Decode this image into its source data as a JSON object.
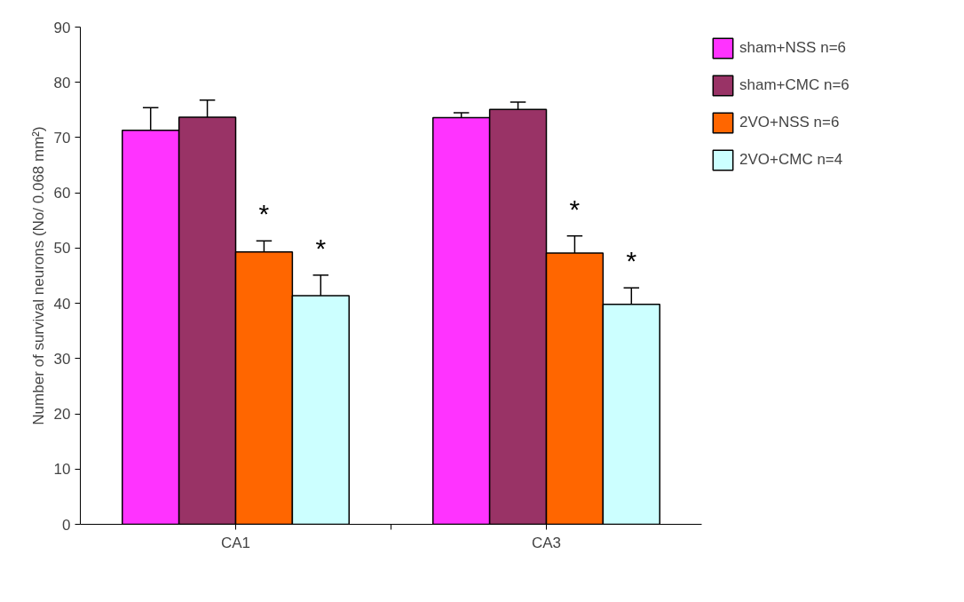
{
  "chart_data": {
    "type": "bar",
    "ylabel": "Number of survival neurons (No/ 0.068 mm²)",
    "categories": [
      "CA1",
      "CA3"
    ],
    "series": [
      {
        "name": "sham+NSS n=6",
        "color": "#ff33ff",
        "values": [
          71.3,
          73.6
        ],
        "errors": [
          4.1,
          0.9
        ]
      },
      {
        "name": "sham+CMC n=6",
        "color": "#993366",
        "values": [
          73.7,
          75.1
        ],
        "errors": [
          3.1,
          1.3
        ]
      },
      {
        "name": "2VO+NSS n=6",
        "color": "#ff6600",
        "values": [
          49.3,
          49.1
        ],
        "errors": [
          2,
          3.1
        ],
        "value_labels": [
          "*",
          "*"
        ]
      },
      {
        "name": "2VO+CMC n=4",
        "color": "#ccffff",
        "values": [
          41.4,
          39.8
        ],
        "errors": [
          3.7,
          3.0
        ],
        "value_labels": [
          "*",
          "*"
        ]
      }
    ],
    "ylim": [
      0,
      90
    ],
    "yticks": [
      0,
      10,
      20,
      30,
      40,
      50,
      60,
      70,
      80,
      90
    ],
    "grid": false,
    "legend": "top right"
  }
}
